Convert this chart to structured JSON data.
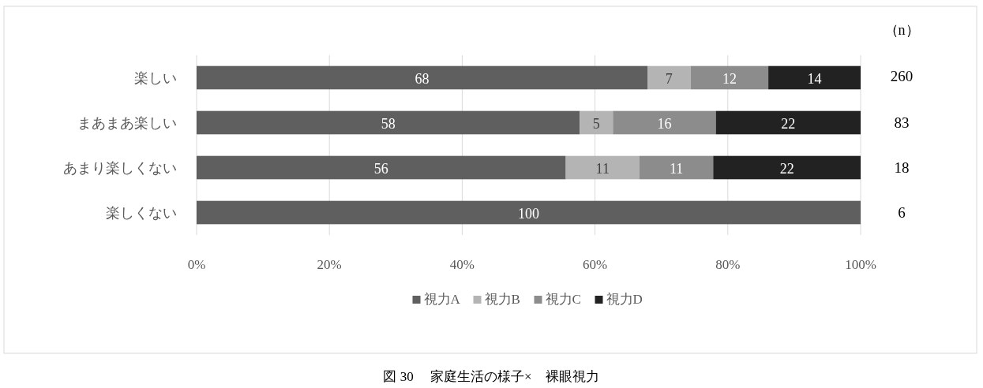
{
  "chart_data": {
    "type": "bar",
    "orientation": "horizontal",
    "stacked": true,
    "title": "図 30　 家庭生活の様子×　裸眼視力",
    "categories": [
      "楽しい",
      "まあまあ楽しい",
      "あまり楽しくない",
      "楽しくない"
    ],
    "series": [
      {
        "name": "視力A",
        "color": "#5f5f5f",
        "values": [
          67.9,
          57.7,
          55.6,
          100
        ],
        "value_labels": [
          "68",
          "58",
          "56",
          "100"
        ]
      },
      {
        "name": "視力B",
        "color": "#b4b4b4",
        "values": [
          6.5,
          5.0,
          11.1,
          null
        ],
        "value_labels": [
          "7",
          "5",
          "11",
          null
        ]
      },
      {
        "name": "視力C",
        "color": "#8c8c8c",
        "values": [
          11.7,
          15.5,
          11.1,
          null
        ],
        "value_labels": [
          "12",
          "16",
          "11",
          null
        ]
      },
      {
        "name": "視力D",
        "color": "#222222",
        "values": [
          13.9,
          21.8,
          22.2,
          null
        ],
        "value_labels": [
          "14",
          "22",
          "22",
          null
        ]
      }
    ],
    "xlim": [
      0,
      100
    ],
    "xticks": [
      {
        "value": 0,
        "label": "0%"
      },
      {
        "value": 20,
        "label": "20%"
      },
      {
        "value": 40,
        "label": "40%"
      },
      {
        "value": 60,
        "label": "60%"
      },
      {
        "value": 80,
        "label": "80%"
      },
      {
        "value": 100,
        "label": "100%"
      }
    ],
    "grid": "x",
    "legend": "bottom",
    "annotations": [
      "（n）",
      "260",
      "83",
      "18",
      "6"
    ]
  }
}
